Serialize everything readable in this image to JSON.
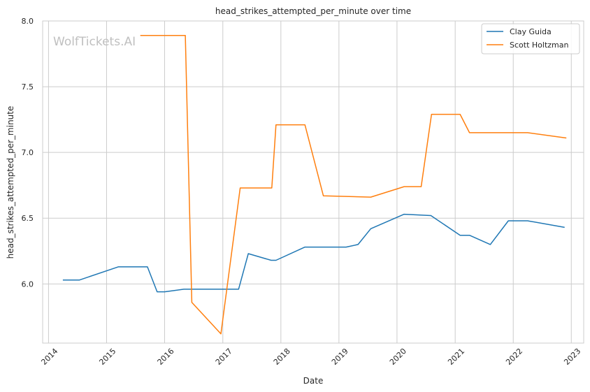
{
  "watermark": "WolfTickets.AI",
  "chart_data": {
    "type": "line",
    "title": "head_strikes_attempted_per_minute over time",
    "xlabel": "Date",
    "ylabel": "head_strikes_attempted_per_minute",
    "xlim": [
      "2013-11-25",
      "2023-03-20"
    ],
    "ylim": [
      5.55,
      8.0
    ],
    "x_ticks": [
      "2014",
      "2015",
      "2016",
      "2017",
      "2018",
      "2019",
      "2020",
      "2021",
      "2022",
      "2023"
    ],
    "y_ticks": [
      "6.0",
      "6.5",
      "7.0",
      "7.5",
      "8.0"
    ],
    "grid": true,
    "legend_position": "top-right",
    "series": [
      {
        "name": "Clay Guida",
        "color": "#1f77b4",
        "points": [
          [
            "2014-04-01",
            6.03
          ],
          [
            "2014-07-15",
            6.03
          ],
          [
            "2015-03-15",
            6.13
          ],
          [
            "2015-09-15",
            6.13
          ],
          [
            "2015-11-15",
            5.94
          ],
          [
            "2016-01-01",
            5.94
          ],
          [
            "2016-05-01",
            5.96
          ],
          [
            "2016-07-01",
            5.96
          ],
          [
            "2017-04-10",
            5.96
          ],
          [
            "2017-06-10",
            6.23
          ],
          [
            "2017-11-01",
            6.18
          ],
          [
            "2017-12-01",
            6.18
          ],
          [
            "2018-06-01",
            6.28
          ],
          [
            "2019-02-15",
            6.28
          ],
          [
            "2019-05-01",
            6.3
          ],
          [
            "2019-07-20",
            6.42
          ],
          [
            "2020-02-15",
            6.53
          ],
          [
            "2020-08-01",
            6.52
          ],
          [
            "2021-02-01",
            6.37
          ],
          [
            "2021-04-01",
            6.37
          ],
          [
            "2021-08-10",
            6.3
          ],
          [
            "2021-12-01",
            6.48
          ],
          [
            "2022-04-01",
            6.48
          ],
          [
            "2022-11-20",
            6.43
          ]
        ]
      },
      {
        "name": "Scott Holtzman",
        "color": "#ff7f0e",
        "points": [
          [
            "2015-08-01",
            7.89
          ],
          [
            "2016-05-10",
            7.89
          ],
          [
            "2016-06-20",
            5.86
          ],
          [
            "2016-12-20",
            5.62
          ],
          [
            "2017-04-20",
            6.73
          ],
          [
            "2017-11-05",
            6.73
          ],
          [
            "2017-12-01",
            7.21
          ],
          [
            "2018-06-01",
            7.21
          ],
          [
            "2018-09-25",
            6.67
          ],
          [
            "2019-07-20",
            6.66
          ],
          [
            "2020-02-15",
            6.74
          ],
          [
            "2020-06-01",
            6.74
          ],
          [
            "2020-08-05",
            7.29
          ],
          [
            "2021-02-01",
            7.29
          ],
          [
            "2021-04-01",
            7.15
          ],
          [
            "2022-04-01",
            7.15
          ],
          [
            "2022-12-01",
            7.11
          ]
        ]
      }
    ]
  }
}
